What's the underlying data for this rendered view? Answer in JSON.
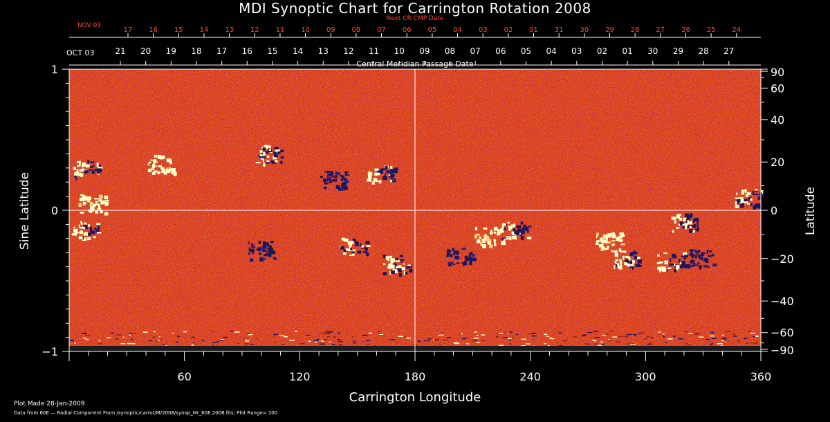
{
  "chart_data": {
    "type": "heatmap",
    "title": "MDI Synoptic Chart for Carrington Rotation 2008",
    "xlabel": "Carrington Longitude",
    "ylabel_left": "Sine Latitude",
    "ylabel_right": "Latitude",
    "xlim": [
      0,
      360
    ],
    "ylim": [
      -1,
      1
    ],
    "x_ticks": [
      "60",
      "120",
      "180",
      "240",
      "300",
      "360"
    ],
    "y_left_ticks": [
      "1",
      "0",
      "−1"
    ],
    "y_right_ticks": [
      "90",
      "60",
      "40",
      "20",
      "0",
      "−20",
      "−40",
      "−60",
      "−90"
    ],
    "top_axis_next": {
      "label": "Next CR CMP Date",
      "start_label": "NOV 03",
      "days": [
        "17",
        "16",
        "15",
        "14",
        "13",
        "12",
        "11",
        "10",
        "09",
        "08",
        "07",
        "06",
        "05",
        "04",
        "03",
        "02",
        "01",
        "31",
        "30",
        "29",
        "28",
        "27",
        "26",
        "25",
        "24"
      ]
    },
    "top_axis_current": {
      "label": "Central Meridian Passage Date",
      "start_label": "OCT 03",
      "days": [
        "21",
        "20",
        "19",
        "18",
        "17",
        "16",
        "15",
        "14",
        "13",
        "12",
        "11",
        "10",
        "09",
        "08",
        "07",
        "06",
        "05",
        "04",
        "03",
        "02",
        "01",
        "30",
        "29",
        "28",
        "27"
      ]
    },
    "colors": {
      "background": "#e34a16",
      "positive": "#ffffc8",
      "negative": "#1a1660",
      "next_axis": "#ff4a2a",
      "grid": "#ffffff"
    },
    "active_regions": [
      {
        "lon": 9,
        "sinlat": 0.3,
        "polarity": "mixed"
      },
      {
        "lon": 12,
        "sinlat": 0.05,
        "polarity": "positive"
      },
      {
        "lon": 8,
        "sinlat": -0.13,
        "polarity": "mixed"
      },
      {
        "lon": 48,
        "sinlat": 0.33,
        "polarity": "positive"
      },
      {
        "lon": 103,
        "sinlat": 0.4,
        "polarity": "mixed"
      },
      {
        "lon": 137,
        "sinlat": 0.22,
        "polarity": "negative"
      },
      {
        "lon": 162,
        "sinlat": 0.26,
        "polarity": "mixed"
      },
      {
        "lon": 100,
        "sinlat": -0.28,
        "polarity": "negative"
      },
      {
        "lon": 148,
        "sinlat": -0.25,
        "polarity": "mixed"
      },
      {
        "lon": 218,
        "sinlat": -0.18,
        "polarity": "positive"
      },
      {
        "lon": 232,
        "sinlat": -0.14,
        "polarity": "mixed"
      },
      {
        "lon": 203,
        "sinlat": -0.32,
        "polarity": "negative"
      },
      {
        "lon": 280,
        "sinlat": -0.22,
        "polarity": "positive"
      },
      {
        "lon": 290,
        "sinlat": -0.34,
        "polarity": "mixed"
      },
      {
        "lon": 313,
        "sinlat": -0.36,
        "polarity": "mixed"
      },
      {
        "lon": 328,
        "sinlat": -0.34,
        "polarity": "negative"
      },
      {
        "lon": 320,
        "sinlat": -0.08,
        "polarity": "mixed"
      },
      {
        "lon": 353,
        "sinlat": 0.09,
        "polarity": "mixed"
      },
      {
        "lon": 170,
        "sinlat": -0.38,
        "polarity": "mixed"
      }
    ]
  },
  "footer": {
    "plot_made": "Plot Made 28-Jan-2009",
    "data_note": "Data from 60E — Radial Component From /synoptic/carrot/M/2008/synop_Mr_60E.2008.fits; Plot Range= 100"
  }
}
